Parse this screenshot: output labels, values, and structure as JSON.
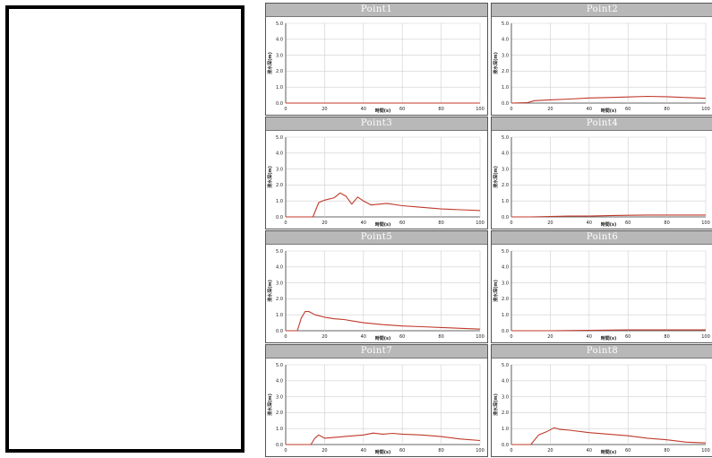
{
  "chart_data": [
    {
      "type": "line",
      "title": "Point1",
      "xlabel": "時間(s)",
      "ylabel": "浸水深(m)",
      "xlim": [
        0,
        100
      ],
      "ylim": [
        0,
        5
      ],
      "xticks": [
        "0",
        "20",
        "40",
        "60",
        "80",
        "100"
      ],
      "yticks": [
        "0.0",
        "1.0",
        "2.0",
        "3.0",
        "4.0",
        "5.0"
      ],
      "grid": true,
      "series": [
        {
          "color": "#c0392b",
          "x": [
            0,
            10,
            20,
            30,
            40,
            50,
            60,
            70,
            80,
            90,
            100
          ],
          "y": [
            0,
            0,
            0,
            0,
            0,
            0,
            0,
            0,
            0,
            0,
            0
          ]
        }
      ]
    },
    {
      "type": "line",
      "title": "Point2",
      "xlabel": "時間(s)",
      "ylabel": "浸水深(m)",
      "xlim": [
        0,
        100
      ],
      "ylim": [
        0,
        5
      ],
      "xticks": [
        "0",
        "20",
        "40",
        "60",
        "80",
        "100"
      ],
      "yticks": [
        "0.0",
        "1.0",
        "2.0",
        "3.0",
        "4.0",
        "5.0"
      ],
      "grid": true,
      "series": [
        {
          "color": "#c0392b",
          "x": [
            0,
            8,
            12,
            20,
            30,
            40,
            50,
            60,
            70,
            80,
            90,
            100
          ],
          "y": [
            0,
            0.02,
            0.15,
            0.2,
            0.25,
            0.32,
            0.35,
            0.38,
            0.42,
            0.4,
            0.35,
            0.3
          ]
        }
      ]
    },
    {
      "type": "line",
      "title": "Point3",
      "xlabel": "時間(s)",
      "ylabel": "浸水深(m)",
      "xlim": [
        0,
        100
      ],
      "ylim": [
        0,
        5
      ],
      "xticks": [
        "0",
        "20",
        "40",
        "60",
        "80",
        "100"
      ],
      "yticks": [
        "0.0",
        "1.0",
        "2.0",
        "3.0",
        "4.0",
        "5.0"
      ],
      "grid": true,
      "series": [
        {
          "color": "#c0392b",
          "x": [
            0,
            14,
            17,
            20,
            25,
            28,
            31,
            34,
            37,
            40,
            44,
            48,
            52,
            60,
            70,
            80,
            90,
            100
          ],
          "y": [
            0,
            0,
            0.9,
            1.05,
            1.2,
            1.5,
            1.3,
            0.8,
            1.25,
            1.0,
            0.75,
            0.8,
            0.85,
            0.7,
            0.6,
            0.5,
            0.45,
            0.4
          ]
        }
      ]
    },
    {
      "type": "line",
      "title": "Point4",
      "xlabel": "時間(s)",
      "ylabel": "浸水深(m)",
      "xlim": [
        0,
        100
      ],
      "ylim": [
        0,
        5
      ],
      "xticks": [
        "0",
        "20",
        "40",
        "60",
        "80",
        "100"
      ],
      "yticks": [
        "0.0",
        "1.0",
        "2.0",
        "3.0",
        "4.0",
        "5.0"
      ],
      "grid": true,
      "series": [
        {
          "color": "#c0392b",
          "x": [
            0,
            10,
            20,
            30,
            40,
            50,
            60,
            70,
            80,
            90,
            100
          ],
          "y": [
            0,
            0,
            0.03,
            0.05,
            0.05,
            0.08,
            0.1,
            0.12,
            0.12,
            0.12,
            0.12
          ]
        }
      ]
    },
    {
      "type": "line",
      "title": "Point5",
      "xlabel": "時間(s)",
      "ylabel": "浸水深(m)",
      "xlim": [
        0,
        100
      ],
      "ylim": [
        0,
        5
      ],
      "xticks": [
        "0",
        "20",
        "40",
        "60",
        "80",
        "100"
      ],
      "yticks": [
        "0.0",
        "1.0",
        "2.0",
        "3.0",
        "4.0",
        "5.0"
      ],
      "grid": true,
      "series": [
        {
          "color": "#c0392b",
          "x": [
            0,
            6,
            8,
            10,
            12,
            15,
            20,
            25,
            30,
            35,
            40,
            50,
            60,
            70,
            80,
            90,
            100
          ],
          "y": [
            0,
            0,
            0.8,
            1.2,
            1.2,
            1.0,
            0.85,
            0.75,
            0.7,
            0.6,
            0.5,
            0.38,
            0.3,
            0.25,
            0.2,
            0.15,
            0.1
          ]
        }
      ]
    },
    {
      "type": "line",
      "title": "Point6",
      "xlabel": "時間(s)",
      "ylabel": "浸水深(m)",
      "xlim": [
        0,
        100
      ],
      "ylim": [
        0,
        5
      ],
      "xticks": [
        "0",
        "20",
        "40",
        "60",
        "80",
        "100"
      ],
      "yticks": [
        "0.0",
        "1.0",
        "2.0",
        "3.0",
        "4.0",
        "5.0"
      ],
      "grid": true,
      "series": [
        {
          "color": "#c0392b",
          "x": [
            0,
            20,
            40,
            60,
            80,
            100
          ],
          "y": [
            0,
            0,
            0.02,
            0.05,
            0.05,
            0.05
          ]
        }
      ]
    },
    {
      "type": "line",
      "title": "Point7",
      "xlabel": "時間(s)",
      "ylabel": "浸水深(m)",
      "xlim": [
        0,
        100
      ],
      "ylim": [
        0,
        5
      ],
      "xticks": [
        "0",
        "20",
        "40",
        "60",
        "80",
        "100"
      ],
      "yticks": [
        "0.0",
        "1.0",
        "2.0",
        "3.0",
        "4.0",
        "5.0"
      ],
      "grid": true,
      "series": [
        {
          "color": "#c0392b",
          "x": [
            0,
            13,
            15,
            17,
            20,
            30,
            40,
            45,
            50,
            55,
            60,
            70,
            80,
            90,
            100
          ],
          "y": [
            0,
            0,
            0.4,
            0.6,
            0.4,
            0.5,
            0.6,
            0.72,
            0.65,
            0.7,
            0.65,
            0.6,
            0.5,
            0.35,
            0.25
          ]
        }
      ]
    },
    {
      "type": "line",
      "title": "Point8",
      "xlabel": "時間(s)",
      "ylabel": "浸水深(m)",
      "xlim": [
        0,
        100
      ],
      "ylim": [
        0,
        5
      ],
      "xticks": [
        "0",
        "20",
        "40",
        "60",
        "80",
        "100"
      ],
      "yticks": [
        "0.0",
        "1.0",
        "2.0",
        "3.0",
        "4.0",
        "5.0"
      ],
      "grid": true,
      "series": [
        {
          "color": "#c0392b",
          "x": [
            0,
            10,
            14,
            18,
            22,
            25,
            30,
            40,
            50,
            60,
            70,
            80,
            90,
            100
          ],
          "y": [
            0,
            0,
            0.6,
            0.8,
            1.05,
            0.95,
            0.9,
            0.75,
            0.65,
            0.55,
            0.4,
            0.3,
            0.15,
            0.1
          ]
        }
      ]
    }
  ]
}
